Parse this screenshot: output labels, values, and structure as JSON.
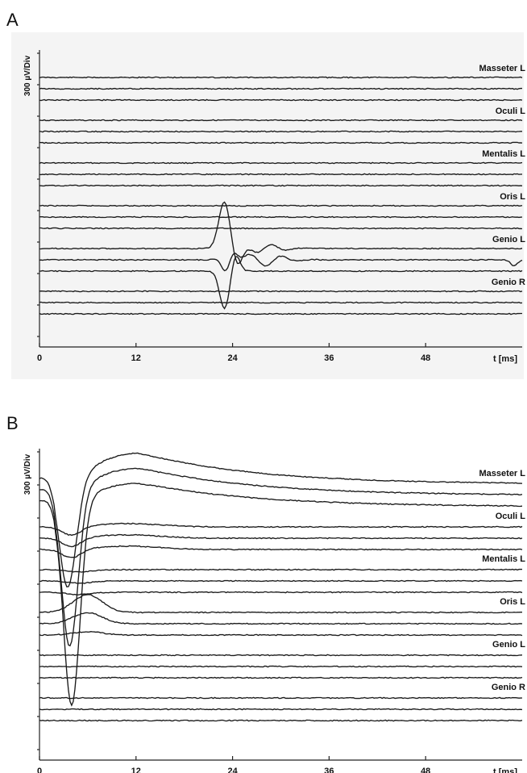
{
  "chart_data": [
    {
      "type": "line",
      "panel": "A",
      "ylabel": "300 µV/Div",
      "xlabel": "t [ms]",
      "xticks": [
        0,
        12,
        24,
        36,
        48
      ],
      "xlim": [
        0,
        60
      ],
      "channels": [
        "Masseter L",
        "Oculi L",
        "Mentalis L",
        "Oris L",
        "Genio L",
        "Genio R"
      ],
      "traces_per_channel": 3,
      "response": {
        "channel": "Genio L",
        "onset_ms": 22,
        "peak_ms": 23,
        "end_ms": 31,
        "peak_amplitude_uV": 450
      },
      "late_wave_ms": 59
    },
    {
      "type": "line",
      "panel": "B",
      "ylabel": "300 µV/Div",
      "xlabel": "t [ms]",
      "xticks": [
        0,
        12,
        24,
        36,
        48
      ],
      "xlim": [
        0,
        60
      ],
      "channels": [
        "Masseter L",
        "Oculi L",
        "Mentalis L",
        "Oris L",
        "Genio L",
        "Genio R"
      ],
      "traces_per_channel": 3,
      "response": {
        "channel": "Masseter L",
        "trough_ms": 3.5,
        "trough_amplitude_uV": -1800,
        "rebound_peak_ms": 12,
        "rebound_amplitude_uV": 300
      },
      "secondary_response": {
        "channel": "Oris L",
        "peak_ms": 6,
        "amplitude_uV": 200
      }
    }
  ]
}
